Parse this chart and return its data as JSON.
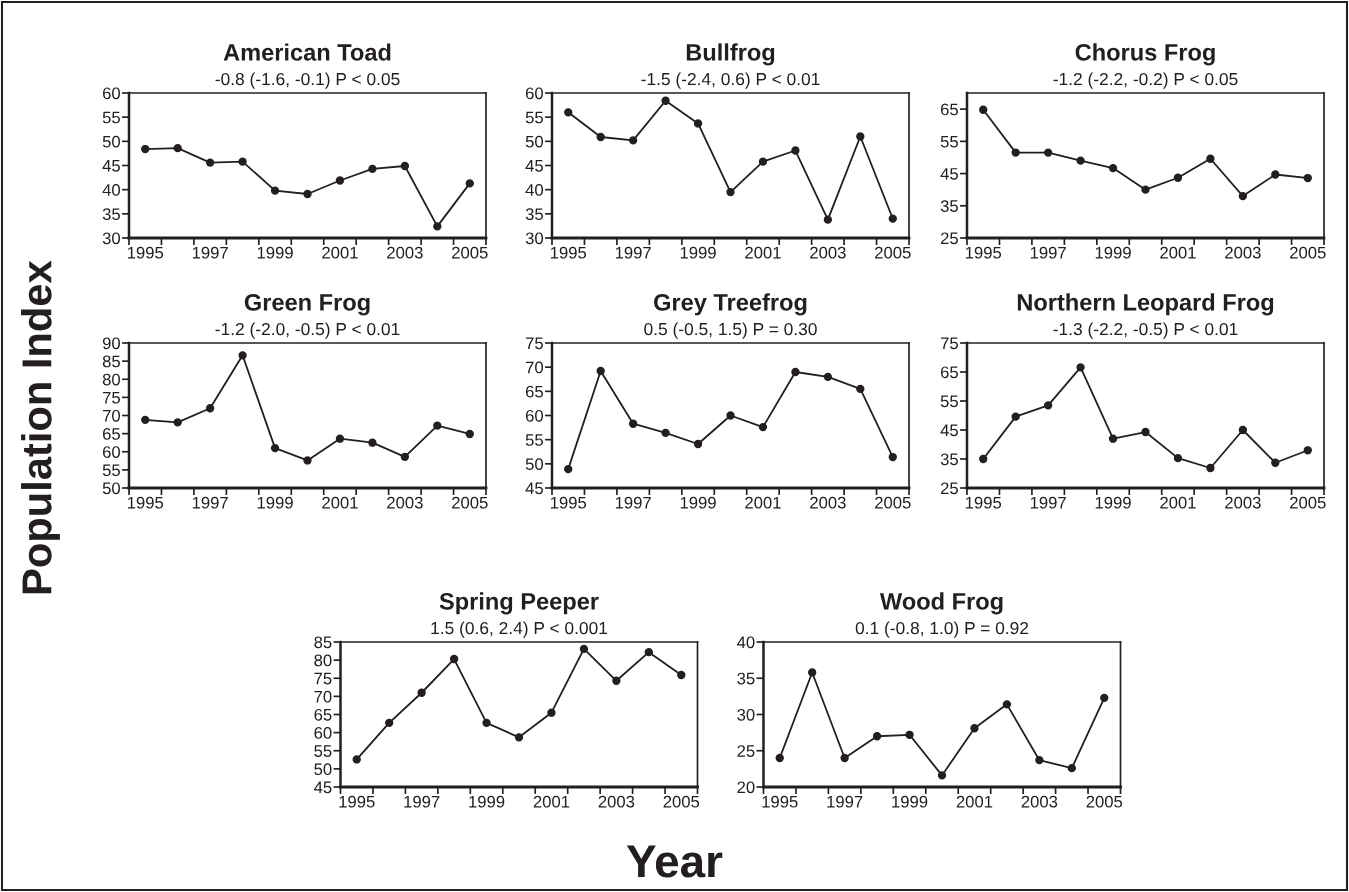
{
  "chart_data": [
    {
      "type": "line",
      "title": "American Toad",
      "subtitle": "-0.8 (-1.6, -0.1) P < 0.05",
      "xlabel": "Year",
      "ylabel": "Population Index",
      "marker": "circle",
      "line_style": "solid",
      "xlim": [
        1994.5,
        2005.5
      ],
      "xticks": [
        {
          "value": 1994.5,
          "label": null
        },
        1995,
        {
          "value": 1995.5,
          "label": null
        },
        {
          "value": 1996.5,
          "label": null
        },
        1997,
        {
          "value": 1997.5,
          "label": null
        },
        {
          "value": 1998.5,
          "label": null
        },
        1999,
        {
          "value": 1999.5,
          "label": null
        },
        {
          "value": 2000.5,
          "label": null
        },
        2001,
        {
          "value": 2001.5,
          "label": null
        },
        {
          "value": 2002.5,
          "label": null
        },
        2003,
        {
          "value": 2003.5,
          "label": null
        },
        {
          "value": 2004.5,
          "label": null
        },
        2005,
        {
          "value": 2005.5,
          "label": null
        }
      ],
      "ylim": [
        30,
        60
      ],
      "yticks": [
        30,
        35,
        40,
        45,
        50,
        55,
        60
      ],
      "x": [
        1995,
        1996,
        1997,
        1998,
        1999,
        2000,
        2001,
        2002,
        2003,
        2004,
        2005
      ],
      "series": [
        {
          "color": "#231f20",
          "values": [
            48.4,
            48.6,
            45.6,
            45.8,
            39.8,
            39.1,
            41.9,
            44.3,
            44.9,
            32.4,
            41.3
          ]
        }
      ]
    },
    {
      "type": "line",
      "title": "Bullfrog",
      "subtitle": "-1.5 (-2.4, 0.6) P < 0.01",
      "marker": "circle",
      "line_style": "solid",
      "xlim": [
        1994.5,
        2005.5
      ],
      "xticks": [
        {
          "value": 1994.5,
          "label": null
        },
        1995,
        {
          "value": 1995.5,
          "label": null
        },
        {
          "value": 1996.5,
          "label": null
        },
        1997,
        {
          "value": 1997.5,
          "label": null
        },
        {
          "value": 1998.5,
          "label": null
        },
        1999,
        {
          "value": 1999.5,
          "label": null
        },
        {
          "value": 2000.5,
          "label": null
        },
        2001,
        {
          "value": 2001.5,
          "label": null
        },
        {
          "value": 2002.5,
          "label": null
        },
        2003,
        {
          "value": 2003.5,
          "label": null
        },
        {
          "value": 2004.5,
          "label": null
        },
        2005,
        {
          "value": 2005.5,
          "label": null
        }
      ],
      "ylim": [
        30,
        60
      ],
      "yticks": [
        30,
        35,
        40,
        45,
        50,
        55,
        60
      ],
      "x": [
        1995,
        1996,
        1997,
        1998,
        1999,
        2000,
        2001,
        2002,
        2003,
        2004,
        2005
      ],
      "series": [
        {
          "color": "#231f20",
          "values": [
            56.0,
            50.9,
            50.2,
            58.4,
            53.7,
            39.5,
            45.8,
            48.1,
            33.8,
            51.0,
            34.0
          ]
        }
      ]
    },
    {
      "type": "line",
      "title": "Chorus Frog",
      "subtitle": "-1.2 (-2.2, -0.2) P < 0.05",
      "marker": "circle",
      "line_style": "solid",
      "xlim": [
        1994.5,
        2005.5
      ],
      "xticks": [
        {
          "value": 1994.5,
          "label": null
        },
        1995,
        {
          "value": 1995.5,
          "label": null
        },
        {
          "value": 1996.5,
          "label": null
        },
        1997,
        {
          "value": 1997.5,
          "label": null
        },
        {
          "value": 1998.5,
          "label": null
        },
        1999,
        {
          "value": 1999.5,
          "label": null
        },
        {
          "value": 2000.5,
          "label": null
        },
        2001,
        {
          "value": 2001.5,
          "label": null
        },
        {
          "value": 2002.5,
          "label": null
        },
        2003,
        {
          "value": 2003.5,
          "label": null
        },
        {
          "value": 2004.5,
          "label": null
        },
        2005,
        {
          "value": 2005.5,
          "label": null
        }
      ],
      "ylim": [
        25,
        70
      ],
      "yticks": [
        25,
        35,
        45,
        55,
        65
      ],
      "x": [
        1995,
        1996,
        1997,
        1998,
        1999,
        2000,
        2001,
        2002,
        2003,
        2004,
        2005
      ],
      "series": [
        {
          "color": "#231f20",
          "values": [
            64.8,
            51.5,
            51.5,
            49.0,
            46.7,
            40.0,
            43.7,
            49.6,
            38.0,
            44.7,
            43.6
          ]
        }
      ]
    },
    {
      "type": "line",
      "title": "Green Frog",
      "subtitle": "-1.2 (-2.0, -0.5) P < 0.01",
      "marker": "circle",
      "line_style": "solid",
      "xlim": [
        1994.5,
        2005.5
      ],
      "xticks": [
        {
          "value": 1994.5,
          "label": null
        },
        1995,
        {
          "value": 1995.5,
          "label": null
        },
        {
          "value": 1996.5,
          "label": null
        },
        1997,
        {
          "value": 1997.5,
          "label": null
        },
        {
          "value": 1998.5,
          "label": null
        },
        1999,
        {
          "value": 1999.5,
          "label": null
        },
        {
          "value": 2000.5,
          "label": null
        },
        2001,
        {
          "value": 2001.5,
          "label": null
        },
        {
          "value": 2002.5,
          "label": null
        },
        2003,
        {
          "value": 2003.5,
          "label": null
        },
        {
          "value": 2004.5,
          "label": null
        },
        2005,
        {
          "value": 2005.5,
          "label": null
        }
      ],
      "ylim": [
        50,
        90
      ],
      "yticks": [
        50,
        55,
        60,
        65,
        70,
        75,
        80,
        85,
        90
      ],
      "x": [
        1995,
        1996,
        1997,
        1998,
        1999,
        2000,
        2001,
        2002,
        2003,
        2004,
        2005
      ],
      "series": [
        {
          "color": "#231f20",
          "values": [
            68.8,
            68.1,
            72.0,
            86.6,
            61.0,
            57.6,
            63.6,
            62.5,
            58.6,
            67.2,
            64.9
          ]
        }
      ]
    },
    {
      "type": "line",
      "title": "Grey Treefrog",
      "subtitle": "0.5 (-0.5, 1.5) P = 0.30",
      "marker": "circle",
      "line_style": "solid",
      "xlim": [
        1994.5,
        2005.5
      ],
      "xticks": [
        {
          "value": 1994.5,
          "label": null
        },
        1995,
        {
          "value": 1995.5,
          "label": null
        },
        {
          "value": 1996.5,
          "label": null
        },
        1997,
        {
          "value": 1997.5,
          "label": null
        },
        {
          "value": 1998.5,
          "label": null
        },
        1999,
        {
          "value": 1999.5,
          "label": null
        },
        {
          "value": 2000.5,
          "label": null
        },
        2001,
        {
          "value": 2001.5,
          "label": null
        },
        {
          "value": 2002.5,
          "label": null
        },
        2003,
        {
          "value": 2003.5,
          "label": null
        },
        {
          "value": 2004.5,
          "label": null
        },
        2005,
        {
          "value": 2005.5,
          "label": null
        }
      ],
      "ylim": [
        45,
        75
      ],
      "yticks": [
        45,
        50,
        55,
        60,
        65,
        70,
        75
      ],
      "x": [
        1995,
        1996,
        1997,
        1998,
        1999,
        2000,
        2001,
        2002,
        2003,
        2004,
        2005
      ],
      "series": [
        {
          "color": "#231f20",
          "values": [
            48.9,
            69.2,
            58.3,
            56.4,
            54.1,
            60.0,
            57.6,
            69.0,
            68.0,
            65.5,
            51.4
          ]
        }
      ]
    },
    {
      "type": "line",
      "title": "Northern Leopard Frog",
      "subtitle": "-1.3 (-2.2, -0.5) P < 0.01",
      "marker": "circle",
      "line_style": "solid",
      "xlim": [
        1994.5,
        2005.5
      ],
      "xticks": [
        {
          "value": 1994.5,
          "label": null
        },
        1995,
        {
          "value": 1995.5,
          "label": null
        },
        {
          "value": 1996.5,
          "label": null
        },
        1997,
        {
          "value": 1997.5,
          "label": null
        },
        {
          "value": 1998.5,
          "label": null
        },
        1999,
        {
          "value": 1999.5,
          "label": null
        },
        {
          "value": 2000.5,
          "label": null
        },
        2001,
        {
          "value": 2001.5,
          "label": null
        },
        {
          "value": 2002.5,
          "label": null
        },
        2003,
        {
          "value": 2003.5,
          "label": null
        },
        {
          "value": 2004.5,
          "label": null
        },
        2005,
        {
          "value": 2005.5,
          "label": null
        }
      ],
      "ylim": [
        25,
        75
      ],
      "yticks": [
        25,
        35,
        45,
        55,
        65,
        75
      ],
      "x": [
        1995,
        1996,
        1997,
        1998,
        1999,
        2000,
        2001,
        2002,
        2003,
        2004,
        2005
      ],
      "series": [
        {
          "color": "#231f20",
          "values": [
            35.0,
            49.6,
            53.5,
            66.6,
            42.0,
            44.3,
            35.3,
            31.9,
            45.0,
            33.7,
            38.0
          ]
        }
      ]
    },
    {
      "type": "line",
      "title": "Spring Peeper",
      "subtitle": "1.5 (0.6, 2.4) P < 0.001",
      "marker": "circle",
      "line_style": "solid",
      "xlim": [
        1994.5,
        2005.5
      ],
      "xticks": [
        {
          "value": 1994.5,
          "label": null
        },
        1995,
        {
          "value": 1995.5,
          "label": null
        },
        {
          "value": 1996.5,
          "label": null
        },
        1997,
        {
          "value": 1997.5,
          "label": null
        },
        {
          "value": 1998.5,
          "label": null
        },
        1999,
        {
          "value": 1999.5,
          "label": null
        },
        {
          "value": 2000.5,
          "label": null
        },
        2001,
        {
          "value": 2001.5,
          "label": null
        },
        {
          "value": 2002.5,
          "label": null
        },
        2003,
        {
          "value": 2003.5,
          "label": null
        },
        {
          "value": 2004.5,
          "label": null
        },
        2005,
        {
          "value": 2005.5,
          "label": null
        }
      ],
      "ylim": [
        45,
        85
      ],
      "yticks": [
        45,
        50,
        55,
        60,
        65,
        70,
        75,
        80,
        85
      ],
      "x": [
        1995,
        1996,
        1997,
        1998,
        1999,
        2000,
        2001,
        2002,
        2003,
        2004,
        2005
      ],
      "series": [
        {
          "color": "#231f20",
          "values": [
            52.6,
            62.7,
            71.0,
            80.3,
            62.7,
            58.7,
            65.5,
            83.1,
            74.3,
            82.2,
            75.9
          ]
        }
      ]
    },
    {
      "type": "line",
      "title": "Wood Frog",
      "subtitle": "0.1 (-0.8, 1.0) P = 0.92",
      "marker": "circle",
      "line_style": "solid",
      "xlim": [
        1994.5,
        2005.5
      ],
      "xticks": [
        {
          "value": 1994.5,
          "label": null
        },
        1995,
        {
          "value": 1995.5,
          "label": null
        },
        {
          "value": 1996.5,
          "label": null
        },
        1997,
        {
          "value": 1997.5,
          "label": null
        },
        {
          "value": 1998.5,
          "label": null
        },
        1999,
        {
          "value": 1999.5,
          "label": null
        },
        {
          "value": 2000.5,
          "label": null
        },
        2001,
        {
          "value": 2001.5,
          "label": null
        },
        {
          "value": 2002.5,
          "label": null
        },
        2003,
        {
          "value": 2003.5,
          "label": null
        },
        {
          "value": 2004.5,
          "label": null
        },
        2005,
        {
          "value": 2005.5,
          "label": null
        }
      ],
      "ylim": [
        20,
        40
      ],
      "yticks": [
        20,
        25,
        30,
        35,
        40
      ],
      "x": [
        1995,
        1996,
        1997,
        1998,
        1999,
        2000,
        2001,
        2002,
        2003,
        2004,
        2005
      ],
      "series": [
        {
          "color": "#231f20",
          "values": [
            24.0,
            35.8,
            24.0,
            27.0,
            27.2,
            21.6,
            28.1,
            31.4,
            23.7,
            22.6,
            32.3
          ]
        }
      ]
    }
  ]
}
